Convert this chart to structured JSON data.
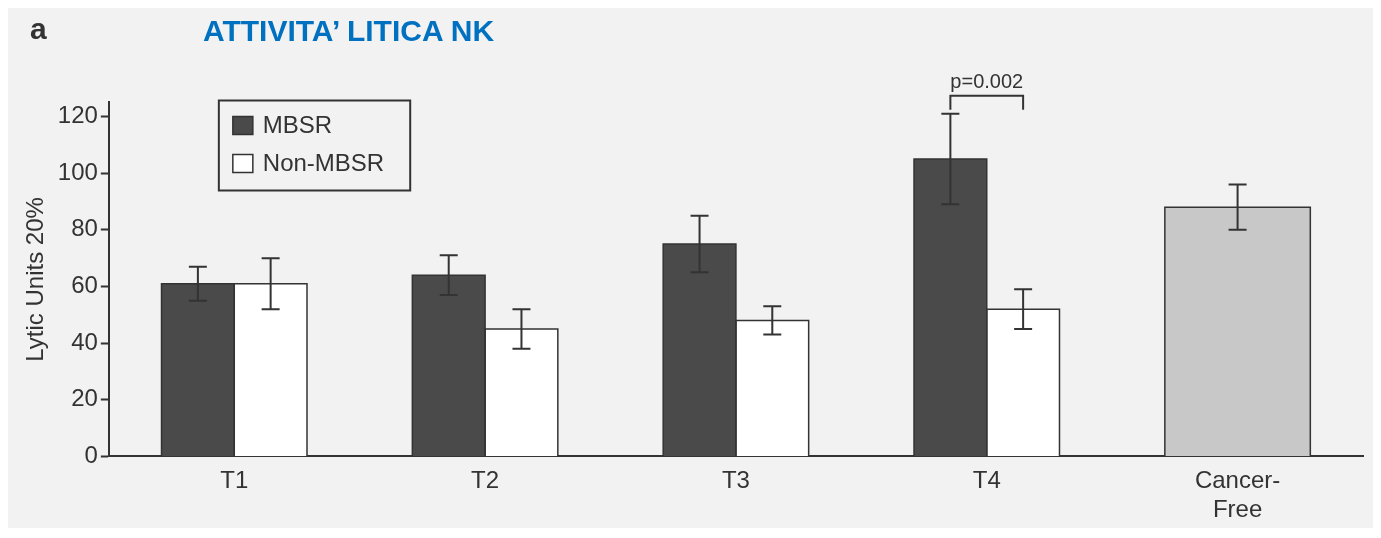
{
  "chart_data": {
    "type": "bar",
    "title": "ATTIVITA’ LITICA NK",
    "ylabel": "Lytic Units 20%",
    "categories": [
      "T1",
      "T2",
      "T3",
      "T4",
      "Cancer-Free"
    ],
    "series": [
      {
        "name": "MBSR",
        "color": "#4a4a4a",
        "values": [
          61,
          64,
          75,
          105,
          null
        ],
        "errors": [
          6,
          7,
          10,
          16,
          null
        ]
      },
      {
        "name": "Non-MBSR",
        "color": "#ffffff",
        "values": [
          61,
          45,
          48,
          52,
          null
        ],
        "errors": [
          9,
          7,
          5,
          7,
          null
        ]
      },
      {
        "color": "#c8c8c8",
        "values": [
          null,
          null,
          null,
          null,
          88
        ],
        "errors": [
          null,
          null,
          null,
          null,
          8
        ]
      }
    ],
    "ylim": [
      0,
      125
    ],
    "yticks": [
      0,
      20,
      40,
      60,
      80,
      100,
      120
    ],
    "grid": false,
    "legend": "top left",
    "annotations": [
      "a",
      "p=0.002"
    ]
  }
}
